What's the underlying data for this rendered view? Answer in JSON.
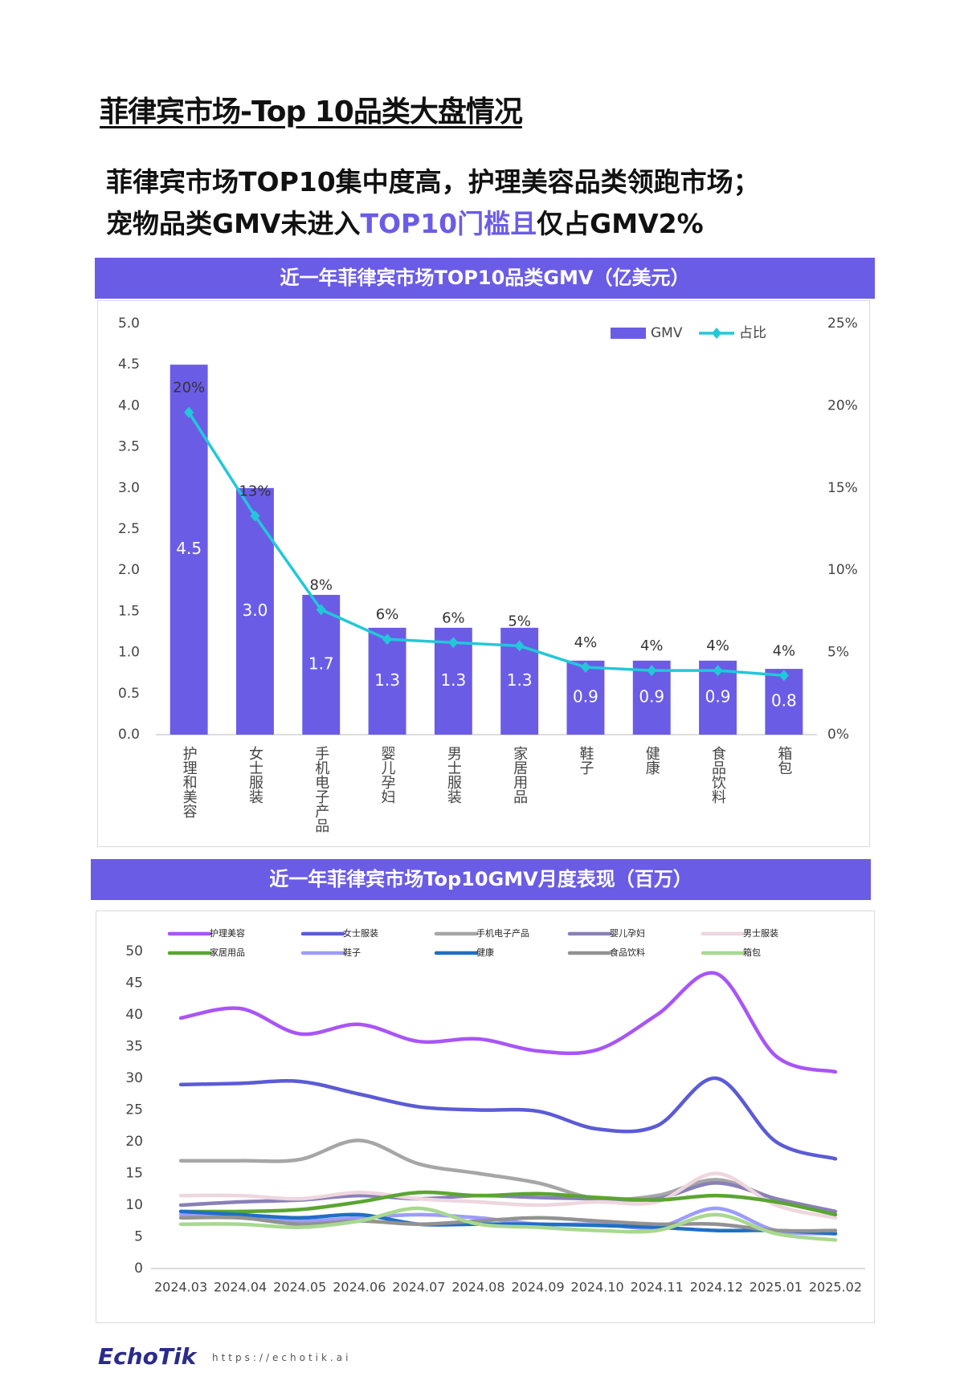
{
  "page_title": "菲律宾市场-Top 10品类大盘情况",
  "headline": {
    "line1": [
      {
        "text": "菲律宾市场TOP10集中度高，护理美容品类领跑市场；",
        "highlight": false
      }
    ],
    "line2": [
      {
        "text": "宠物品类GMV未进入",
        "highlight": false
      },
      {
        "text": "TOP10门槛且",
        "highlight": true
      },
      {
        "text": "仅占GMV2%",
        "highlight": false
      }
    ]
  },
  "chart_data": [
    {
      "type": "combo",
      "title": "近一年菲律宾市场TOP10品类GMV（亿美元）",
      "categories": [
        "护理和美容",
        "女士服装",
        "手机电子产品",
        "婴儿孕妇",
        "男士服装",
        "家居用品",
        "鞋子",
        "健康",
        "食品饮料",
        "箱包"
      ],
      "series": [
        {
          "name": "GMV",
          "color": "#6b5ce6",
          "mark": "bar",
          "values": [
            4.5,
            3.0,
            1.7,
            1.3,
            1.3,
            1.3,
            0.9,
            0.9,
            0.9,
            0.8
          ],
          "value_labels": [
            "4.5",
            "3.0",
            "1.7",
            "1.3",
            "1.3",
            "1.3",
            "0.9",
            "0.9",
            "0.9",
            "0.8"
          ]
        },
        {
          "name": "占比",
          "color": "#22c8d8",
          "mark": "line",
          "axis": "y2",
          "values": [
            19.6,
            13.3,
            7.6,
            5.8,
            5.6,
            5.4,
            4.1,
            3.9,
            3.9,
            3.6
          ],
          "value_labels": [
            "20%",
            "13%",
            "8%",
            "6%",
            "6%",
            "5%",
            "4%",
            "4%",
            "4%",
            "4%"
          ]
        }
      ],
      "ylim": [
        0,
        5
      ],
      "yticks": [
        {
          "value": 0,
          "label": "0.0"
        },
        0.5,
        {
          "value": 1,
          "label": "1.0"
        },
        1.5,
        {
          "value": 2,
          "label": "2.0"
        },
        2.5,
        {
          "value": 3,
          "label": "3.0"
        },
        3.5,
        {
          "value": 4,
          "label": "4.0"
        },
        4.5,
        {
          "value": 5,
          "label": "5.0"
        }
      ],
      "y2lim": [
        0,
        25
      ],
      "y2ticks": [
        {
          "value": 0,
          "label": "0%"
        },
        {
          "value": 5,
          "label": "5%"
        },
        {
          "value": 10,
          "label": "10%"
        },
        {
          "value": 15,
          "label": "15%"
        },
        {
          "value": 20,
          "label": "20%"
        },
        {
          "value": 25,
          "label": "25%"
        }
      ],
      "legend": "top-right",
      "grid": false
    },
    {
      "type": "line",
      "title": "近一年菲律宾市场Top10GMV月度表现（百万）",
      "categories": [
        "2024.03",
        "2024.04",
        "2024.05",
        "2024.06",
        "2024.07",
        "2024.08",
        "2024.09",
        "2024.10",
        "2024.11",
        "2024.12",
        "2025.01",
        "2025.02"
      ],
      "series": [
        {
          "name": "护理美容",
          "color": "#a855f7",
          "values": [
            39.5,
            41,
            37,
            38.5,
            35.8,
            36.2,
            34.3,
            34.5,
            40,
            46.5,
            33.5,
            31
          ]
        },
        {
          "name": "女士服装",
          "color": "#5b5bd6",
          "values": [
            29,
            29.2,
            29.5,
            27.5,
            25.5,
            25,
            24.8,
            22,
            22.5,
            30,
            20,
            17.3
          ]
        },
        {
          "name": "手机电子产品",
          "color": "#a6a6a6",
          "values": [
            17,
            17,
            17.2,
            20.2,
            16.5,
            15,
            13.5,
            11,
            11.5,
            14,
            11,
            9
          ]
        },
        {
          "name": "婴儿孕妇",
          "color": "#8a80b8",
          "values": [
            10,
            10.5,
            10.8,
            11.5,
            11,
            11.5,
            11.2,
            11,
            11,
            13.5,
            11,
            9
          ]
        },
        {
          "name": "男士服装",
          "color": "#eed6df",
          "values": [
            11.5,
            11.5,
            11,
            12,
            11,
            10.5,
            10,
            10.5,
            10.5,
            15,
            10,
            8
          ]
        },
        {
          "name": "家居用品",
          "color": "#5aa532",
          "values": [
            9,
            9,
            9.3,
            10.5,
            12,
            11.5,
            11.8,
            11.2,
            10.8,
            11.5,
            10.5,
            8.5
          ]
        },
        {
          "name": "鞋子",
          "color": "#9c9cff",
          "values": [
            8.5,
            8,
            7.5,
            8,
            8.5,
            8,
            7,
            7,
            6.5,
            9.5,
            6,
            5.5
          ]
        },
        {
          "name": "健康",
          "color": "#1f6fc5",
          "values": [
            9,
            8.5,
            8,
            8.5,
            7,
            7,
            7,
            6.8,
            6.5,
            6,
            6,
            5.5
          ]
        },
        {
          "name": "食品饮料",
          "color": "#929292",
          "values": [
            8,
            8,
            7,
            7.5,
            7,
            7.5,
            8,
            7.5,
            7,
            7,
            6,
            6
          ]
        },
        {
          "name": "箱包",
          "color": "#a8d890",
          "values": [
            7,
            7,
            6.5,
            7.5,
            9.5,
            7,
            6.5,
            6,
            6,
            8.5,
            5.5,
            4.5
          ]
        }
      ],
      "ylim": [
        0,
        50
      ],
      "yticks": [
        0,
        5,
        10,
        15,
        20,
        25,
        30,
        35,
        40,
        45,
        50
      ],
      "legend": "top",
      "grid": false
    }
  ],
  "footer": {
    "logo": "EchoTik",
    "url": "https://echotik.ai"
  }
}
